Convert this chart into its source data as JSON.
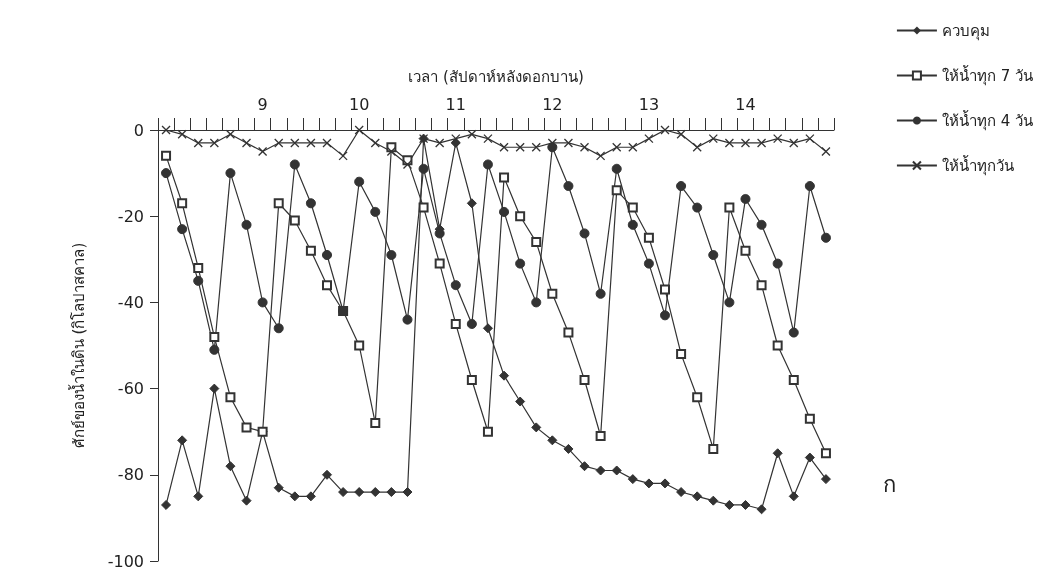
{
  "chart_data": {
    "type": "line",
    "xlabel": "เวลา (สัปดาห์หลังดอกบาน)",
    "ylabel": "ศักย์ของน้ำในดิน (กิโลปาสคาล)",
    "annotations": [
      "ก"
    ],
    "categories": [
      null,
      null,
      null,
      null,
      null,
      null,
      "9",
      null,
      null,
      null,
      null,
      null,
      "10",
      null,
      null,
      null,
      null,
      null,
      "11",
      null,
      null,
      null,
      null,
      null,
      "12",
      null,
      null,
      null,
      null,
      null,
      "13",
      null,
      null,
      null,
      null,
      null,
      "14",
      null,
      null,
      null,
      null,
      null
    ],
    "series": [
      {
        "name": "ควบคุม",
        "color": "#333333",
        "marker": "diamond",
        "values": [
          -87,
          -72,
          -85,
          -60,
          -78,
          -86,
          -70,
          -83,
          -85,
          -85,
          -80,
          -84,
          -84,
          -84,
          -84,
          -84,
          -2,
          -23,
          -3,
          -17,
          -46,
          -57,
          -63,
          -69,
          -72,
          -74,
          -78,
          -79,
          -79,
          -81,
          -82,
          -82,
          -84,
          -85,
          -86,
          -87,
          -87,
          -88,
          -75,
          -85,
          -76,
          -81
        ]
      },
      {
        "name": "ให้น้ำทุก 7 วัน",
        "color": "#333333",
        "marker": "square",
        "values": [
          -6,
          -17,
          -32,
          -48,
          -62,
          -69,
          -70,
          -17,
          -21,
          -28,
          -36,
          -42,
          -50,
          -68,
          -4,
          -7,
          -18,
          -31,
          -45,
          -58,
          -70,
          -11,
          -20,
          -26,
          -38,
          -47,
          -58,
          -71,
          -14,
          -18,
          -25,
          -37,
          -52,
          -62,
          -74,
          -18,
          -28,
          -36,
          -50,
          -58,
          -67,
          -75
        ]
      },
      {
        "name": "ให้น้ำทุก 4 วัน",
        "color": "#333333",
        "marker": "circle",
        "values": [
          -10,
          -23,
          -35,
          -51,
          -10,
          -22,
          -40,
          -46,
          -8,
          -17,
          -29,
          -42,
          -12,
          -19,
          -29,
          -44,
          -9,
          -24,
          -36,
          -45,
          -8,
          -19,
          -31,
          -40,
          -4,
          -13,
          -24,
          -38,
          -9,
          -22,
          -31,
          -43,
          -13,
          -18,
          -29,
          -40,
          -16,
          -22,
          -31,
          -47,
          -13,
          -25
        ]
      },
      {
        "name": "ให้น้ำทุกวัน",
        "color": "#333333",
        "marker": "cross",
        "values": [
          0,
          -1,
          -3,
          -3,
          -1,
          -3,
          -5,
          -3,
          -3,
          -3,
          -3,
          -6,
          0,
          -3,
          -5,
          -8,
          -2,
          -3,
          -2,
          -1,
          -2,
          -4,
          -4,
          -4,
          -3,
          -3,
          -4,
          -6,
          -4,
          -4,
          -2,
          0,
          -1,
          -4,
          -2,
          -3,
          -3,
          -3,
          -2,
          -3,
          -2,
          -5
        ]
      }
    ],
    "ylim": [
      -100,
      0
    ],
    "yticks": [
      -100,
      -80,
      -60,
      -40,
      -20,
      0
    ],
    "grid": false,
    "legend": "right"
  }
}
